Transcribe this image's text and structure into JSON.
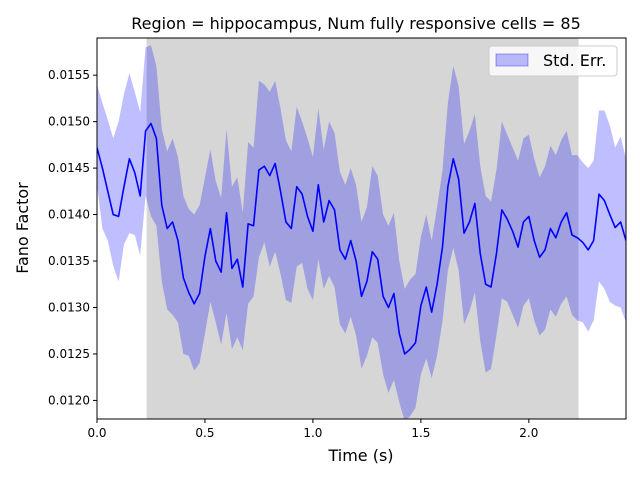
{
  "chart_data": {
    "type": "line",
    "title": "Region = hippocampus, Num fully responsive cells = 85",
    "xlabel": "Time (s)",
    "ylabel": "Fano Factor",
    "xlim": [
      0.0,
      2.45
    ],
    "ylim": [
      0.0118,
      0.0159
    ],
    "x_ticks": [
      "0.0",
      "0.5",
      "1.0",
      "1.5",
      "2.0"
    ],
    "y_ticks": [
      "0.0120",
      "0.0125",
      "0.0130",
      "0.0135",
      "0.0140",
      "0.0145",
      "0.0150",
      "0.0155"
    ],
    "grid": false,
    "legend": {
      "position": "top-right",
      "entries": [
        "Std. Err."
      ]
    },
    "shaded_region": {
      "x_start": 0.23,
      "x_end": 2.23,
      "color": "#d6d6d6"
    },
    "series": [
      {
        "name": "",
        "color": "#0000ff",
        "x": [
          0.0,
          0.025,
          0.05,
          0.075,
          0.1,
          0.125,
          0.15,
          0.175,
          0.2,
          0.225,
          0.25,
          0.275,
          0.3,
          0.325,
          0.35,
          0.375,
          0.4,
          0.425,
          0.45,
          0.475,
          0.5,
          0.525,
          0.55,
          0.575,
          0.6,
          0.625,
          0.65,
          0.675,
          0.7,
          0.725,
          0.75,
          0.775,
          0.8,
          0.825,
          0.85,
          0.875,
          0.9,
          0.925,
          0.95,
          0.975,
          1.0,
          1.025,
          1.05,
          1.075,
          1.1,
          1.125,
          1.15,
          1.175,
          1.2,
          1.225,
          1.25,
          1.275,
          1.3,
          1.325,
          1.35,
          1.375,
          1.4,
          1.425,
          1.45,
          1.475,
          1.5,
          1.525,
          1.55,
          1.575,
          1.6,
          1.625,
          1.65,
          1.675,
          1.7,
          1.725,
          1.75,
          1.775,
          1.8,
          1.825,
          1.85,
          1.875,
          1.9,
          1.925,
          1.95,
          1.975,
          2.0,
          2.025,
          2.05,
          2.075,
          2.1,
          2.125,
          2.15,
          2.175,
          2.2,
          2.225,
          2.25,
          2.275,
          2.3,
          2.325,
          2.35,
          2.375,
          2.4,
          2.425,
          2.45
        ],
        "values": [
          0.01472,
          0.0145,
          0.01425,
          0.014,
          0.01398,
          0.0143,
          0.0146,
          0.01445,
          0.0142,
          0.0149,
          0.01498,
          0.01482,
          0.0141,
          0.01385,
          0.01392,
          0.01372,
          0.01332,
          0.01316,
          0.01304,
          0.01315,
          0.01355,
          0.01385,
          0.0135,
          0.01338,
          0.01402,
          0.01342,
          0.01352,
          0.01322,
          0.0139,
          0.01388,
          0.01448,
          0.01452,
          0.01442,
          0.01455,
          0.01425,
          0.01392,
          0.01385,
          0.0143,
          0.01422,
          0.01398,
          0.01382,
          0.01432,
          0.01392,
          0.01415,
          0.01405,
          0.01362,
          0.01352,
          0.01372,
          0.0135,
          0.01312,
          0.01328,
          0.0136,
          0.01352,
          0.01312,
          0.013,
          0.01315,
          0.01272,
          0.0125,
          0.01255,
          0.01262,
          0.01302,
          0.01322,
          0.01295,
          0.01325,
          0.01365,
          0.0143,
          0.0146,
          0.01438,
          0.0138,
          0.01392,
          0.01412,
          0.01358,
          0.01325,
          0.01322,
          0.01358,
          0.01405,
          0.01395,
          0.01382,
          0.01365,
          0.01392,
          0.01398,
          0.01372,
          0.01354,
          0.01362,
          0.01385,
          0.01375,
          0.01392,
          0.01402,
          0.01378,
          0.01375,
          0.0137,
          0.01362,
          0.01372,
          0.01422,
          0.01415,
          0.014,
          0.01386,
          0.01392,
          0.01372
        ]
      }
    ],
    "std_err": {
      "name": "Std. Err.",
      "color": "#0000ff",
      "lower": [
        0.01432,
        0.01385,
        0.01372,
        0.01345,
        0.01328,
        0.01368,
        0.0138,
        0.01378,
        0.01356,
        0.0142,
        0.01398,
        0.01388,
        0.01328,
        0.01298,
        0.01292,
        0.01284,
        0.0125,
        0.01248,
        0.01232,
        0.0124,
        0.01272,
        0.01306,
        0.01284,
        0.0126,
        0.01294,
        0.01255,
        0.01268,
        0.01254,
        0.01304,
        0.01312,
        0.01354,
        0.0137,
        0.01344,
        0.0136,
        0.01336,
        0.01308,
        0.01305,
        0.01344,
        0.01348,
        0.0132,
        0.01308,
        0.01352,
        0.0132,
        0.01334,
        0.01322,
        0.01282,
        0.01272,
        0.0129,
        0.0127,
        0.01234,
        0.01248,
        0.01268,
        0.01262,
        0.01228,
        0.01208,
        0.01222,
        0.01198,
        0.01178,
        0.01183,
        0.01192,
        0.01228,
        0.01245,
        0.01224,
        0.01248,
        0.01285,
        0.0134,
        0.01364,
        0.0134,
        0.01282,
        0.01296,
        0.01316,
        0.01264,
        0.0123,
        0.01234,
        0.0127,
        0.0131,
        0.01306,
        0.01292,
        0.01278,
        0.01302,
        0.0131,
        0.01286,
        0.0127,
        0.01276,
        0.01298,
        0.0129,
        0.01304,
        0.01312,
        0.01292,
        0.01286,
        0.01284,
        0.01274,
        0.01286,
        0.01328,
        0.0132,
        0.01306,
        0.01302,
        0.013,
        0.01284
      ],
      "upper": [
        0.0154,
        0.0152,
        0.01502,
        0.01482,
        0.015,
        0.0153,
        0.01552,
        0.01532,
        0.0151,
        0.0158,
        0.01582,
        0.0156,
        0.01492,
        0.01468,
        0.01482,
        0.01462,
        0.0142,
        0.01406,
        0.014,
        0.0141,
        0.0144,
        0.0147,
        0.01436,
        0.01418,
        0.01492,
        0.0143,
        0.0144,
        0.01402,
        0.01478,
        0.01472,
        0.01544,
        0.0154,
        0.01532,
        0.01544,
        0.01514,
        0.0148,
        0.01468,
        0.01516,
        0.015,
        0.01482,
        0.01462,
        0.01514,
        0.0147,
        0.015,
        0.01488,
        0.01446,
        0.01432,
        0.0145,
        0.01432,
        0.01392,
        0.01408,
        0.01452,
        0.01442,
        0.014,
        0.01388,
        0.01402,
        0.0135,
        0.0132,
        0.0133,
        0.01336,
        0.01376,
        0.014,
        0.01372,
        0.01408,
        0.01448,
        0.0152,
        0.0156,
        0.01538,
        0.01476,
        0.0149,
        0.01508,
        0.01452,
        0.0142,
        0.01414,
        0.01448,
        0.015,
        0.01486,
        0.01472,
        0.01458,
        0.01482,
        0.01486,
        0.0146,
        0.0144,
        0.01452,
        0.01474,
        0.01464,
        0.0148,
        0.0149,
        0.01464,
        0.01464,
        0.01456,
        0.0145,
        0.01458,
        0.01512,
        0.01512,
        0.01496,
        0.01472,
        0.01484,
        0.0146
      ]
    }
  }
}
